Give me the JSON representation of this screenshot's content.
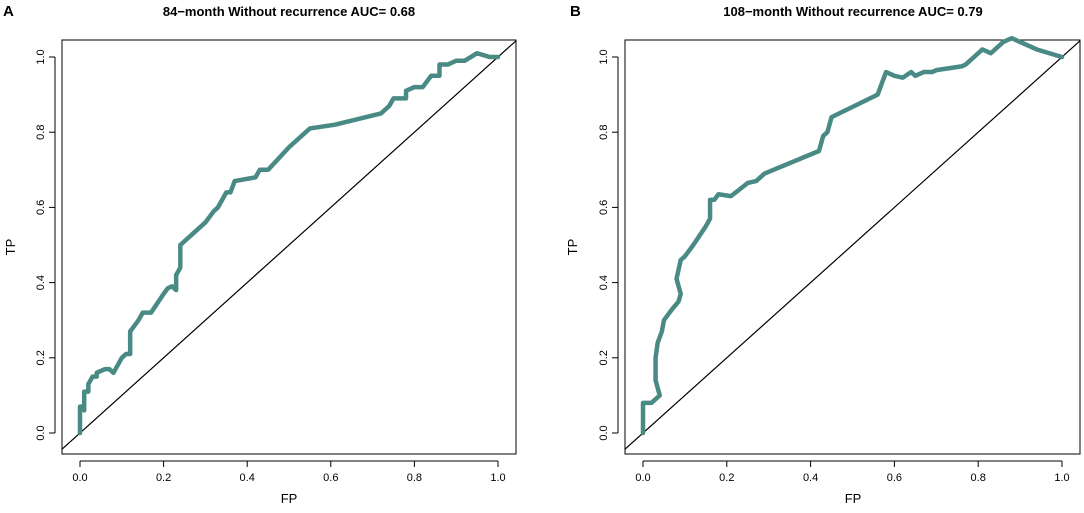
{
  "chart_data": [
    {
      "type": "line",
      "panel_label": "A",
      "title": "84−month Without recurrence AUC= 0.68",
      "xlabel": "FP",
      "ylabel": "TP",
      "xlim": [
        0,
        1
      ],
      "ylim": [
        0,
        1
      ],
      "xticks": [
        "0.0",
        "0.2",
        "0.4",
        "0.6",
        "0.8",
        "1.0"
      ],
      "yticks": [
        "0.0",
        "0.2",
        "0.4",
        "0.6",
        "0.8",
        "1.0"
      ],
      "reference_line": [
        [
          0,
          0
        ],
        [
          1,
          1
        ]
      ],
      "line_color": "#4a8a85",
      "series": [
        {
          "name": "ROC 84-month",
          "points": [
            [
              0.0,
              0.0
            ],
            [
              0.0,
              0.07
            ],
            [
              0.01,
              0.07
            ],
            [
              0.01,
              0.06
            ],
            [
              0.01,
              0.11
            ],
            [
              0.02,
              0.11
            ],
            [
              0.02,
              0.13
            ],
            [
              0.03,
              0.15
            ],
            [
              0.04,
              0.15
            ],
            [
              0.04,
              0.16
            ],
            [
              0.06,
              0.17
            ],
            [
              0.07,
              0.17
            ],
            [
              0.08,
              0.16
            ],
            [
              0.1,
              0.2
            ],
            [
              0.11,
              0.21
            ],
            [
              0.12,
              0.21
            ],
            [
              0.12,
              0.27
            ],
            [
              0.14,
              0.3
            ],
            [
              0.15,
              0.32
            ],
            [
              0.17,
              0.32
            ],
            [
              0.2,
              0.37
            ],
            [
              0.21,
              0.385
            ],
            [
              0.22,
              0.39
            ],
            [
              0.23,
              0.38
            ],
            [
              0.23,
              0.42
            ],
            [
              0.24,
              0.44
            ],
            [
              0.24,
              0.5
            ],
            [
              0.27,
              0.53
            ],
            [
              0.3,
              0.56
            ],
            [
              0.32,
              0.59
            ],
            [
              0.33,
              0.6
            ],
            [
              0.35,
              0.64
            ],
            [
              0.36,
              0.64
            ],
            [
              0.37,
              0.67
            ],
            [
              0.42,
              0.68
            ],
            [
              0.43,
              0.7
            ],
            [
              0.45,
              0.7
            ],
            [
              0.5,
              0.76
            ],
            [
              0.55,
              0.81
            ],
            [
              0.61,
              0.82
            ],
            [
              0.72,
              0.85
            ],
            [
              0.74,
              0.87
            ],
            [
              0.75,
              0.89
            ],
            [
              0.77,
              0.89
            ],
            [
              0.78,
              0.89
            ],
            [
              0.78,
              0.91
            ],
            [
              0.8,
              0.92
            ],
            [
              0.82,
              0.92
            ],
            [
              0.84,
              0.95
            ],
            [
              0.86,
              0.95
            ],
            [
              0.86,
              0.98
            ],
            [
              0.88,
              0.98
            ],
            [
              0.9,
              0.99
            ],
            [
              0.92,
              0.99
            ],
            [
              0.95,
              1.01
            ],
            [
              0.98,
              1.0
            ],
            [
              1.0,
              1.0
            ]
          ]
        }
      ]
    },
    {
      "type": "line",
      "panel_label": "B",
      "title": "108−month Without recurrence AUC= 0.79",
      "xlabel": "FP",
      "ylabel": "TP",
      "xlim": [
        0,
        1
      ],
      "ylim": [
        0,
        1
      ],
      "xticks": [
        "0.0",
        "0.2",
        "0.4",
        "0.6",
        "0.8",
        "1.0"
      ],
      "yticks": [
        "0.0",
        "0.2",
        "0.4",
        "0.6",
        "0.8",
        "1.0"
      ],
      "reference_line": [
        [
          0,
          0
        ],
        [
          1,
          1
        ]
      ],
      "line_color": "#4a8a85",
      "series": [
        {
          "name": "ROC 108-month",
          "points": [
            [
              0.0,
              0.0
            ],
            [
              0.0,
              0.08
            ],
            [
              0.02,
              0.08
            ],
            [
              0.04,
              0.1
            ],
            [
              0.03,
              0.14
            ],
            [
              0.03,
              0.2
            ],
            [
              0.035,
              0.24
            ],
            [
              0.045,
              0.27
            ],
            [
              0.05,
              0.3
            ],
            [
              0.07,
              0.33
            ],
            [
              0.085,
              0.35
            ],
            [
              0.09,
              0.37
            ],
            [
              0.08,
              0.41
            ],
            [
              0.09,
              0.46
            ],
            [
              0.1,
              0.47
            ],
            [
              0.12,
              0.5
            ],
            [
              0.15,
              0.55
            ],
            [
              0.16,
              0.57
            ],
            [
              0.16,
              0.62
            ],
            [
              0.17,
              0.62
            ],
            [
              0.18,
              0.635
            ],
            [
              0.21,
              0.63
            ],
            [
              0.25,
              0.665
            ],
            [
              0.27,
              0.67
            ],
            [
              0.29,
              0.69
            ],
            [
              0.42,
              0.75
            ],
            [
              0.43,
              0.79
            ],
            [
              0.44,
              0.8
            ],
            [
              0.45,
              0.84
            ],
            [
              0.56,
              0.9
            ],
            [
              0.57,
              0.93
            ],
            [
              0.58,
              0.96
            ],
            [
              0.6,
              0.95
            ],
            [
              0.62,
              0.945
            ],
            [
              0.64,
              0.96
            ],
            [
              0.65,
              0.95
            ],
            [
              0.67,
              0.96
            ],
            [
              0.69,
              0.96
            ],
            [
              0.7,
              0.965
            ],
            [
              0.76,
              0.975
            ],
            [
              0.77,
              0.98
            ],
            [
              0.79,
              1.0
            ],
            [
              0.81,
              1.02
            ],
            [
              0.83,
              1.01
            ],
            [
              0.86,
              1.04
            ],
            [
              0.88,
              1.05
            ],
            [
              0.94,
              1.02
            ],
            [
              1.0,
              1.0
            ]
          ]
        }
      ]
    }
  ]
}
